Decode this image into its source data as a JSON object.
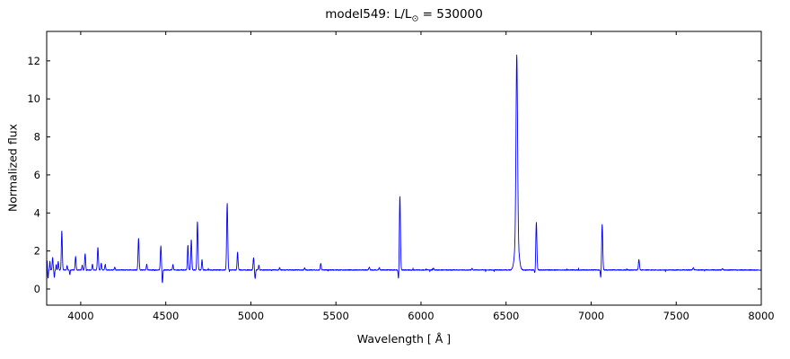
{
  "figure": {
    "title_prefix": "model549: L/L",
    "title_sub": "⊙",
    "title_suffix": " = 530000",
    "xlabel": "Wavelength [ Å ]",
    "ylabel": "Normalized flux"
  },
  "chart_data": {
    "type": "line",
    "title": "model549: L/L⊙ = 530000",
    "xlabel": "Wavelength [ Å ]",
    "ylabel": "Normalized flux",
    "xlim": [
      3800,
      8000
    ],
    "ylim": [
      -0.85,
      13.55
    ],
    "x_ticks": [
      4000,
      4500,
      5000,
      5500,
      6000,
      6500,
      7000,
      7500,
      8000
    ],
    "y_ticks": [
      0,
      2,
      4,
      6,
      8,
      10,
      12
    ],
    "line_color": "#0000ff",
    "grid": false,
    "legend": false,
    "continuum_level": 1.0,
    "noise_amplitude": 0.02,
    "sample_step_angstrom": 1,
    "features": [
      {
        "wl": 3802,
        "peak": 1.5,
        "width": 2.0
      },
      {
        "wl": 3808,
        "peak": 0.55,
        "width": 2.0
      },
      {
        "wl": 3819,
        "peak": 1.45,
        "width": 2.0
      },
      {
        "wl": 3835,
        "peak": 1.65,
        "width": 2.5
      },
      {
        "wl": 3845,
        "peak": 0.6,
        "width": 2.0
      },
      {
        "wl": 3856,
        "peak": 1.3,
        "width": 2.0
      },
      {
        "wl": 3868,
        "peak": 1.45,
        "width": 2.5
      },
      {
        "wl": 3889,
        "peak": 3.05,
        "width": 2.8
      },
      {
        "wl": 3920,
        "peak": 1.25,
        "width": 2.0
      },
      {
        "wl": 3936,
        "peak": 0.75,
        "width": 2.0
      },
      {
        "wl": 3970,
        "peak": 1.7,
        "width": 2.8
      },
      {
        "wl": 4009,
        "peak": 1.25,
        "width": 2.5
      },
      {
        "wl": 4026,
        "peak": 1.85,
        "width": 2.8
      },
      {
        "wl": 4069,
        "peak": 1.3,
        "width": 2.5
      },
      {
        "wl": 4101,
        "peak": 2.2,
        "width": 3.0
      },
      {
        "wl": 4121,
        "peak": 1.35,
        "width": 2.5
      },
      {
        "wl": 4144,
        "peak": 1.3,
        "width": 2.5
      },
      {
        "wl": 4200,
        "peak": 1.15,
        "width": 2.5
      },
      {
        "wl": 4340,
        "peak": 2.65,
        "width": 3.0
      },
      {
        "wl": 4388,
        "peak": 1.3,
        "width": 2.5
      },
      {
        "wl": 4471,
        "peak": 2.25,
        "width": 3.0
      },
      {
        "wl": 4480,
        "peak": 0.3,
        "width": 2.5
      },
      {
        "wl": 4542,
        "peak": 1.3,
        "width": 2.5
      },
      {
        "wl": 4630,
        "peak": 2.3,
        "width": 2.8
      },
      {
        "wl": 4650,
        "peak": 2.6,
        "width": 2.8
      },
      {
        "wl": 4686,
        "peak": 3.55,
        "width": 3.0
      },
      {
        "wl": 4713,
        "peak": 1.55,
        "width": 2.5
      },
      {
        "wl": 4861,
        "peak": 4.5,
        "width": 3.2
      },
      {
        "wl": 4922,
        "peak": 1.95,
        "width": 2.8
      },
      {
        "wl": 5016,
        "peak": 1.65,
        "width": 2.8
      },
      {
        "wl": 5025,
        "peak": 0.55,
        "width": 2.5
      },
      {
        "wl": 5047,
        "peak": 1.25,
        "width": 2.5
      },
      {
        "wl": 5169,
        "peak": 1.12,
        "width": 2.5
      },
      {
        "wl": 5316,
        "peak": 1.12,
        "width": 2.5
      },
      {
        "wl": 5411,
        "peak": 1.35,
        "width": 2.8
      },
      {
        "wl": 5696,
        "peak": 1.15,
        "width": 2.8
      },
      {
        "wl": 5755,
        "peak": 1.12,
        "width": 2.5
      },
      {
        "wl": 5869,
        "peak": 0.38,
        "width": 2.8
      },
      {
        "wl": 5876,
        "peak": 4.9,
        "width": 3.2
      },
      {
        "wl": 6074,
        "peak": 1.1,
        "width": 2.5
      },
      {
        "wl": 6300,
        "peak": 1.1,
        "width": 2.5
      },
      {
        "wl": 6563,
        "peak": 10.5,
        "width": 4.5
      },
      {
        "wl": 6563,
        "peak": 2.8,
        "width": 11.0
      },
      {
        "wl": 6670,
        "peak": 0.8,
        "width": 2.5
      },
      {
        "wl": 6678,
        "peak": 3.5,
        "width": 3.2
      },
      {
        "wl": 7057,
        "peak": 0.55,
        "width": 2.5
      },
      {
        "wl": 7065,
        "peak": 3.4,
        "width": 3.2
      },
      {
        "wl": 7281,
        "peak": 1.55,
        "width": 3.0
      },
      {
        "wl": 7600,
        "peak": 1.12,
        "width": 3.0
      },
      {
        "wl": 7772,
        "peak": 1.08,
        "width": 3.0
      }
    ]
  }
}
